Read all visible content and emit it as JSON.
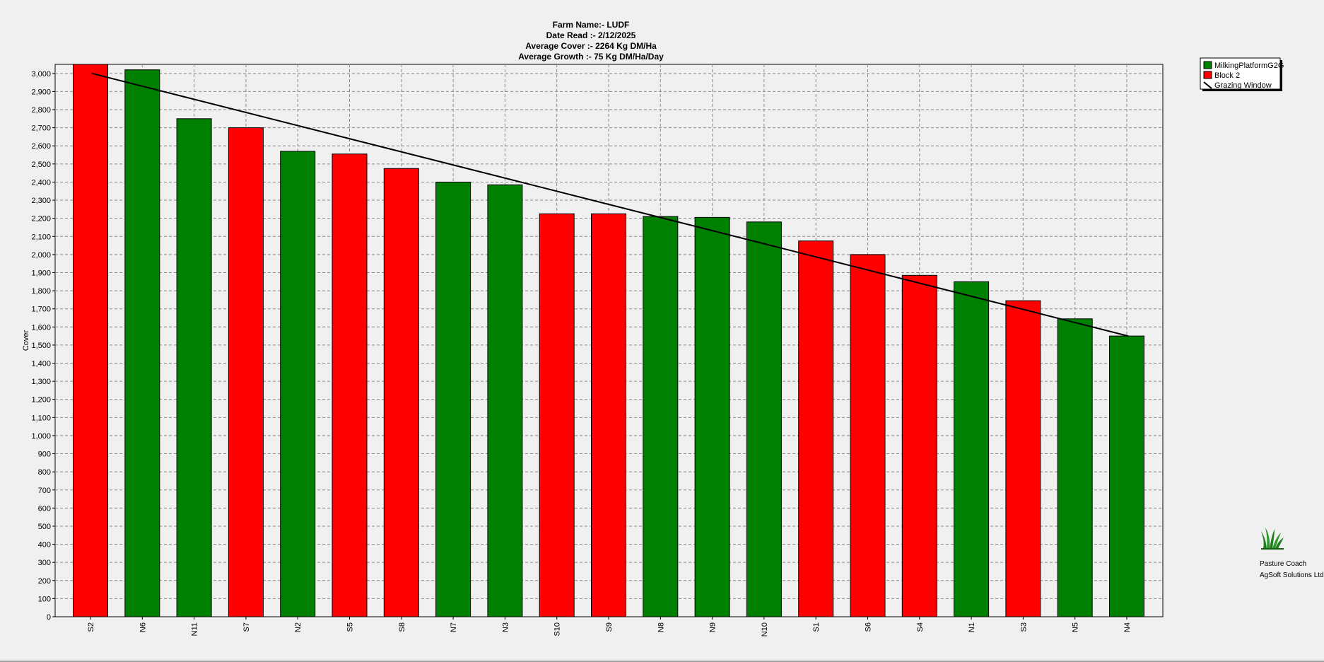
{
  "chart_data": {
    "type": "bar",
    "title_lines": [
      "Farm Name:- LUDF",
      "Date Read :-  2/12/2025",
      "Average Cover :-  2264 Kg DM/Ha",
      "Average Growth :-  75 Kg DM/Ha/Day"
    ],
    "ylabel": "Cover",
    "xlabel": "",
    "ylim": [
      0,
      3050
    ],
    "ytick_step": 100,
    "grid": true,
    "legend_position": "top-right",
    "categories": [
      "S2",
      "N6",
      "N11",
      "S7",
      "N2",
      "S5",
      "S8",
      "N7",
      "N3",
      "S10",
      "S9",
      "N8",
      "N9",
      "N10",
      "S1",
      "S6",
      "S4",
      "N1",
      "S3",
      "N5",
      "N4"
    ],
    "values": [
      3050,
      3020,
      2750,
      2700,
      2570,
      2555,
      2475,
      2400,
      2385,
      2225,
      2225,
      2210,
      2205,
      2180,
      2075,
      2000,
      1885,
      1850,
      1745,
      1645,
      1550
    ],
    "groups": [
      "Block 2",
      "MilkingPlatformG2G",
      "MilkingPlatformG2G",
      "Block 2",
      "MilkingPlatformG2G",
      "Block 2",
      "Block 2",
      "MilkingPlatformG2G",
      "MilkingPlatformG2G",
      "Block 2",
      "Block 2",
      "MilkingPlatformG2G",
      "MilkingPlatformG2G",
      "MilkingPlatformG2G",
      "Block 2",
      "Block 2",
      "Block 2",
      "MilkingPlatformG2G",
      "Block 2",
      "MilkingPlatformG2G",
      "MilkingPlatformG2G"
    ],
    "series": [
      {
        "name": "MilkingPlatformG2G",
        "color": "#008000"
      },
      {
        "name": "Block 2",
        "color": "#ff0000"
      }
    ],
    "grazing_window": {
      "name": "Grazing Window",
      "start": {
        "category": "S2",
        "value": 3000
      },
      "end": {
        "category": "N4",
        "value": 1550
      },
      "color": "#000000"
    }
  },
  "branding": {
    "line1": "Pasture Coach",
    "line2": "AgSoft Solutions Ltd",
    "icon": "grass-icon"
  }
}
